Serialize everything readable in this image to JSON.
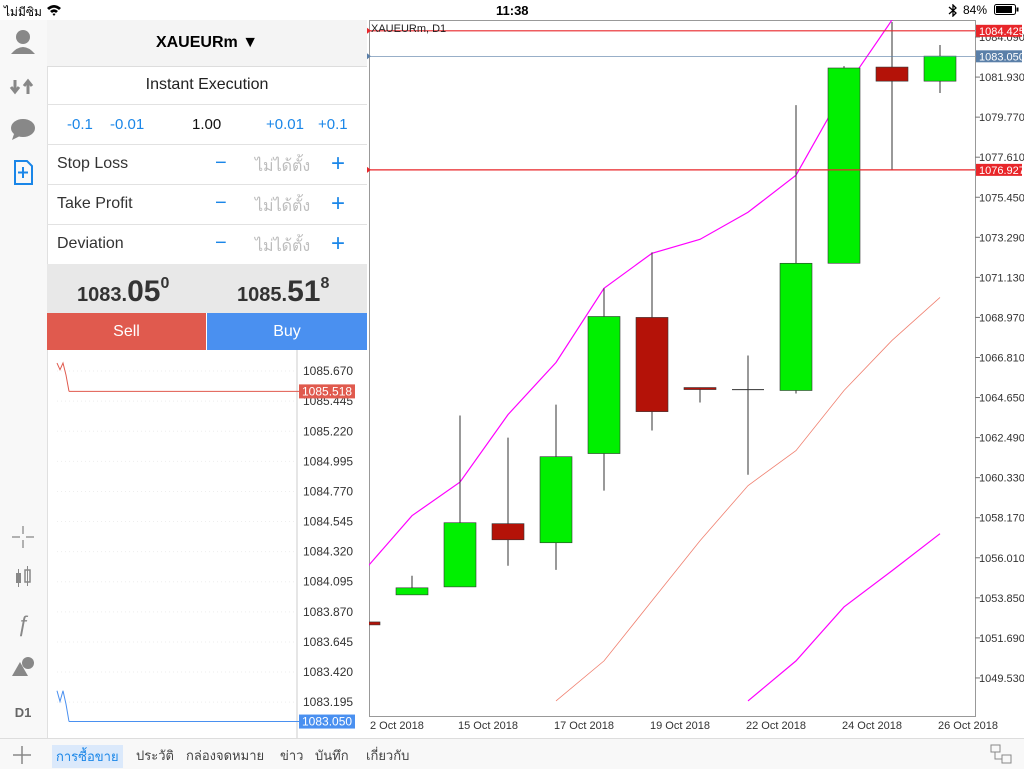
{
  "status": {
    "carrier": "ไม่มีซิม",
    "time": "11:38",
    "battery": "84%"
  },
  "order": {
    "symbol": "XAUEURm ▼",
    "mode": "Instant Execution",
    "volume_steps": [
      "-0.1",
      "-0.01",
      "1.00",
      "+0.01",
      "+0.1"
    ],
    "fields": [
      {
        "label": "Stop Loss",
        "value": "ไม่ได้ตั้ง"
      },
      {
        "label": "Take Profit",
        "value": "ไม่ได้ตั้ง"
      },
      {
        "label": "Deviation",
        "value": "ไม่ได้ตั้ง"
      }
    ],
    "bid": {
      "main": "1083.",
      "big": "05",
      "sup": "0"
    },
    "ask": {
      "main": "1085.",
      "big": "51",
      "sup": "8"
    },
    "sell": "Sell",
    "buy": "Buy"
  },
  "tick_chart": {
    "ylim": [
      1082.927,
      1085.79
    ],
    "yticks": [
      {
        "value": 1085.67,
        "label": "1085.670"
      },
      {
        "value": 1085.445,
        "label": "1085.445"
      },
      {
        "value": 1085.22,
        "label": "1085.220"
      },
      {
        "value": 1084.995,
        "label": "1084.995"
      },
      {
        "value": 1084.77,
        "label": "1084.770"
      },
      {
        "value": 1084.545,
        "label": "1084.545"
      },
      {
        "value": 1084.32,
        "label": "1084.320"
      },
      {
        "value": 1084.095,
        "label": "1084.095"
      },
      {
        "value": 1083.87,
        "label": "1083.870"
      },
      {
        "value": 1083.645,
        "label": "1083.645"
      },
      {
        "value": 1083.42,
        "label": "1083.420"
      },
      {
        "value": 1083.195,
        "label": "1083.195"
      }
    ],
    "ask_ticks": [
      1085.73,
      1085.68,
      1085.73,
      1085.64,
      1085.518
    ],
    "bid_ticks": [
      1083.28,
      1083.2,
      1083.28,
      1083.18,
      1083.05
    ],
    "ask_price": {
      "value": 1085.518,
      "label": "1085.518"
    },
    "bid_price": {
      "value": 1083.05,
      "label": "1083.050"
    }
  },
  "chart": {
    "type": "candlestick",
    "title": "XAUEURm, D1",
    "categories": [
      "2 Oct 2018",
      null,
      "15 Oct 2018",
      null,
      "17 Oct 2018",
      null,
      "19 Oct 2018",
      null,
      "22 Oct 2018",
      null,
      "24 Oct 2018",
      null,
      "26 Oct 2018"
    ],
    "candles": [
      {
        "open": 1052.55,
        "high": 1052.55,
        "low": 1052.39,
        "close": 1052.39
      },
      {
        "open": 1054.01,
        "high": 1055.04,
        "low": 1054.01,
        "close": 1054.39
      },
      {
        "open": 1054.44,
        "high": 1063.68,
        "low": 1054.44,
        "close": 1057.9
      },
      {
        "open": 1057.85,
        "high": 1062.49,
        "low": 1055.58,
        "close": 1056.98
      },
      {
        "open": 1056.82,
        "high": 1064.27,
        "low": 1055.36,
        "close": 1061.46
      },
      {
        "open": 1061.63,
        "high": 1070.54,
        "low": 1059.63,
        "close": 1069.02
      },
      {
        "open": 1068.97,
        "high": 1072.48,
        "low": 1062.87,
        "close": 1063.89
      },
      {
        "open": 1065.19,
        "high": 1065.19,
        "low": 1064.38,
        "close": 1065.08
      },
      {
        "open": 1065.08,
        "high": 1066.92,
        "low": 1060.49,
        "close": 1065.08
      },
      {
        "open": 1065.03,
        "high": 1080.42,
        "low": 1064.87,
        "close": 1071.89
      },
      {
        "open": 1071.89,
        "high": 1082.52,
        "low": 1071.89,
        "close": 1082.42
      },
      {
        "open": 1082.47,
        "high": 1084.9,
        "low": 1076.91,
        "close": 1081.71
      },
      {
        "open": 1081.71,
        "high": 1083.66,
        "low": 1081.07,
        "close": 1083.06
      }
    ],
    "up_color": "#00f000",
    "down_color": "#b41208",
    "lines": [
      {
        "color": "#ff00ff",
        "values": [
          1055.31,
          1058.28,
          1060.09,
          1063.73,
          1066.54,
          1070.54,
          1072.43,
          1073.18,
          1074.64,
          1076.64,
          1081.23,
          1085.01,
          null
        ]
      },
      {
        "color": "#f08070",
        "values": [
          null,
          null,
          null,
          null,
          1048.29,
          1050.45,
          1053.69,
          1056.93,
          1059.9,
          1061.79,
          1065.03,
          1067.73,
          1070.05
        ]
      },
      {
        "color": "#ff00ff",
        "values": [
          null,
          null,
          null,
          null,
          null,
          null,
          null,
          null,
          1048.29,
          1050.45,
          1053.36,
          1055.31,
          1057.31
        ]
      }
    ],
    "ylim": [
      1047.478,
      1085.008
    ],
    "yticks": [
      {
        "value": 1049.53,
        "label": "1049.530"
      },
      {
        "value": 1051.69,
        "label": "1051.690"
      },
      {
        "value": 1053.85,
        "label": "1053.850"
      },
      {
        "value": 1056.01,
        "label": "1056.010"
      },
      {
        "value": 1058.17,
        "label": "1058.170"
      },
      {
        "value": 1060.33,
        "label": "1060.330"
      },
      {
        "value": 1062.49,
        "label": "1062.490"
      },
      {
        "value": 1064.65,
        "label": "1064.650"
      },
      {
        "value": 1066.81,
        "label": "1066.810"
      },
      {
        "value": 1068.97,
        "label": "1068.970"
      },
      {
        "value": 1071.13,
        "label": "1071.130"
      },
      {
        "value": 1073.29,
        "label": "1073.290"
      },
      {
        "value": 1075.45,
        "label": "1075.450"
      },
      {
        "value": 1077.61,
        "label": "1077.610"
      },
      {
        "value": 1079.77,
        "label": "1079.770"
      },
      {
        "value": 1081.93,
        "label": "1081.930"
      },
      {
        "value": 1084.09,
        "label": "1084.090"
      }
    ],
    "price_lines": [
      {
        "value": 1084.425,
        "label": "1084.425",
        "color": "#e8262a"
      },
      {
        "value": 1083.05,
        "label": "1083.050",
        "color": "#5a7fa8"
      },
      {
        "value": 1076.927,
        "label": "1076.927",
        "color": "#e8262a"
      }
    ]
  },
  "sidebar": {
    "period": "D1"
  },
  "tabs": [
    "การซื้อขาย",
    "ประวัติ",
    "กล่องจดหมาย",
    "ข่าว",
    "บันทึก",
    "เกี่ยวกับ"
  ]
}
